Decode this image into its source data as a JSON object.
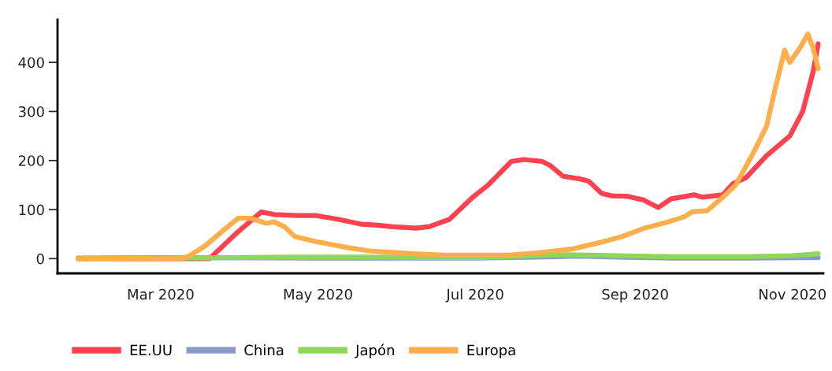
{
  "chart_data": {
    "type": "line",
    "xlim": [
      "2020-01-21",
      "2020-11-13"
    ],
    "xticks": [
      {
        "value": "2020-03-01",
        "label": "Mar 2020"
      },
      {
        "value": "2020-05-01",
        "label": "May 2020"
      },
      {
        "value": "2020-07-01",
        "label": "Jul 2020"
      },
      {
        "value": "2020-09-01",
        "label": "Sep 2020"
      },
      {
        "value": "2020-11-01",
        "label": "Nov 2020"
      }
    ],
    "ylim": [
      -30,
      487
    ],
    "yticks": [
      0,
      100,
      200,
      300,
      400
    ],
    "grid": false,
    "legend": "bottom",
    "marker": "none",
    "line_style": "solid",
    "series": [
      {
        "name": "EE.UU",
        "color": "#ff4150",
        "x": [
          "2020-01-29",
          "2020-03-20",
          "2020-03-30",
          "2020-04-09",
          "2020-04-14",
          "2020-04-23",
          "2020-04-30",
          "2020-05-09",
          "2020-05-18",
          "2020-05-24",
          "2020-05-30",
          "2020-06-08",
          "2020-06-13",
          "2020-06-21",
          "2020-06-30",
          "2020-07-06",
          "2020-07-15",
          "2020-07-20",
          "2020-07-27",
          "2020-07-30",
          "2020-08-04",
          "2020-08-11",
          "2020-08-14",
          "2020-08-19",
          "2020-08-23",
          "2020-08-29",
          "2020-09-04",
          "2020-09-10",
          "2020-09-15",
          "2020-09-24",
          "2020-09-27",
          "2020-10-05",
          "2020-10-09",
          "2020-10-14",
          "2020-10-22",
          "2020-10-31",
          "2020-11-05",
          "2020-11-09",
          "2020-11-11"
        ],
        "values": [
          0,
          0,
          50,
          95,
          90,
          88,
          88,
          80,
          70,
          68,
          65,
          62,
          65,
          80,
          125,
          150,
          198,
          202,
          198,
          190,
          168,
          162,
          158,
          133,
          128,
          127,
          120,
          104,
          122,
          130,
          125,
          130,
          153,
          165,
          210,
          250,
          300,
          380,
          438
        ]
      },
      {
        "name": "China",
        "color": "#8a9ac8",
        "x": [
          "2020-01-29",
          "2020-03-01",
          "2020-05-01",
          "2020-07-01",
          "2020-07-25",
          "2020-08-10",
          "2020-08-25",
          "2020-09-15",
          "2020-10-15",
          "2020-11-11"
        ],
        "values": [
          1,
          2,
          1,
          1,
          3,
          5,
          3,
          1,
          1,
          2
        ]
      },
      {
        "name": "Japón",
        "color": "#8fd65a",
        "x": [
          "2020-01-29",
          "2020-03-01",
          "2020-04-20",
          "2020-05-20",
          "2020-07-01",
          "2020-08-05",
          "2020-08-25",
          "2020-09-15",
          "2020-10-15",
          "2020-11-01",
          "2020-11-11"
        ],
        "values": [
          0,
          1,
          3,
          3,
          2,
          8,
          6,
          4,
          4,
          6,
          10
        ]
      },
      {
        "name": "Europa",
        "color": "#ffae4c",
        "x": [
          "2020-01-29",
          "2020-03-09",
          "2020-03-12",
          "2020-03-18",
          "2020-03-27",
          "2020-03-31",
          "2020-04-05",
          "2020-04-11",
          "2020-04-14",
          "2020-04-18",
          "2020-04-22",
          "2020-04-30",
          "2020-05-13",
          "2020-05-22",
          "2020-06-07",
          "2020-06-19",
          "2020-07-14",
          "2020-07-26",
          "2020-08-08",
          "2020-08-20",
          "2020-08-27",
          "2020-09-04",
          "2020-09-14",
          "2020-09-20",
          "2020-09-23",
          "2020-09-29",
          "2020-10-05",
          "2020-10-10",
          "2020-10-17",
          "2020-10-22",
          "2020-10-25",
          "2020-10-29",
          "2020-10-31",
          "2020-11-04",
          "2020-11-07",
          "2020-11-09",
          "2020-11-11"
        ],
        "values": [
          0,
          0,
          5,
          25,
          65,
          82,
          82,
          72,
          75,
          65,
          45,
          35,
          22,
          15,
          10,
          7,
          7,
          12,
          20,
          35,
          45,
          61,
          75,
          85,
          95,
          98,
          125,
          150,
          217,
          270,
          339,
          425,
          400,
          430,
          458,
          430,
          387
        ]
      }
    ]
  }
}
